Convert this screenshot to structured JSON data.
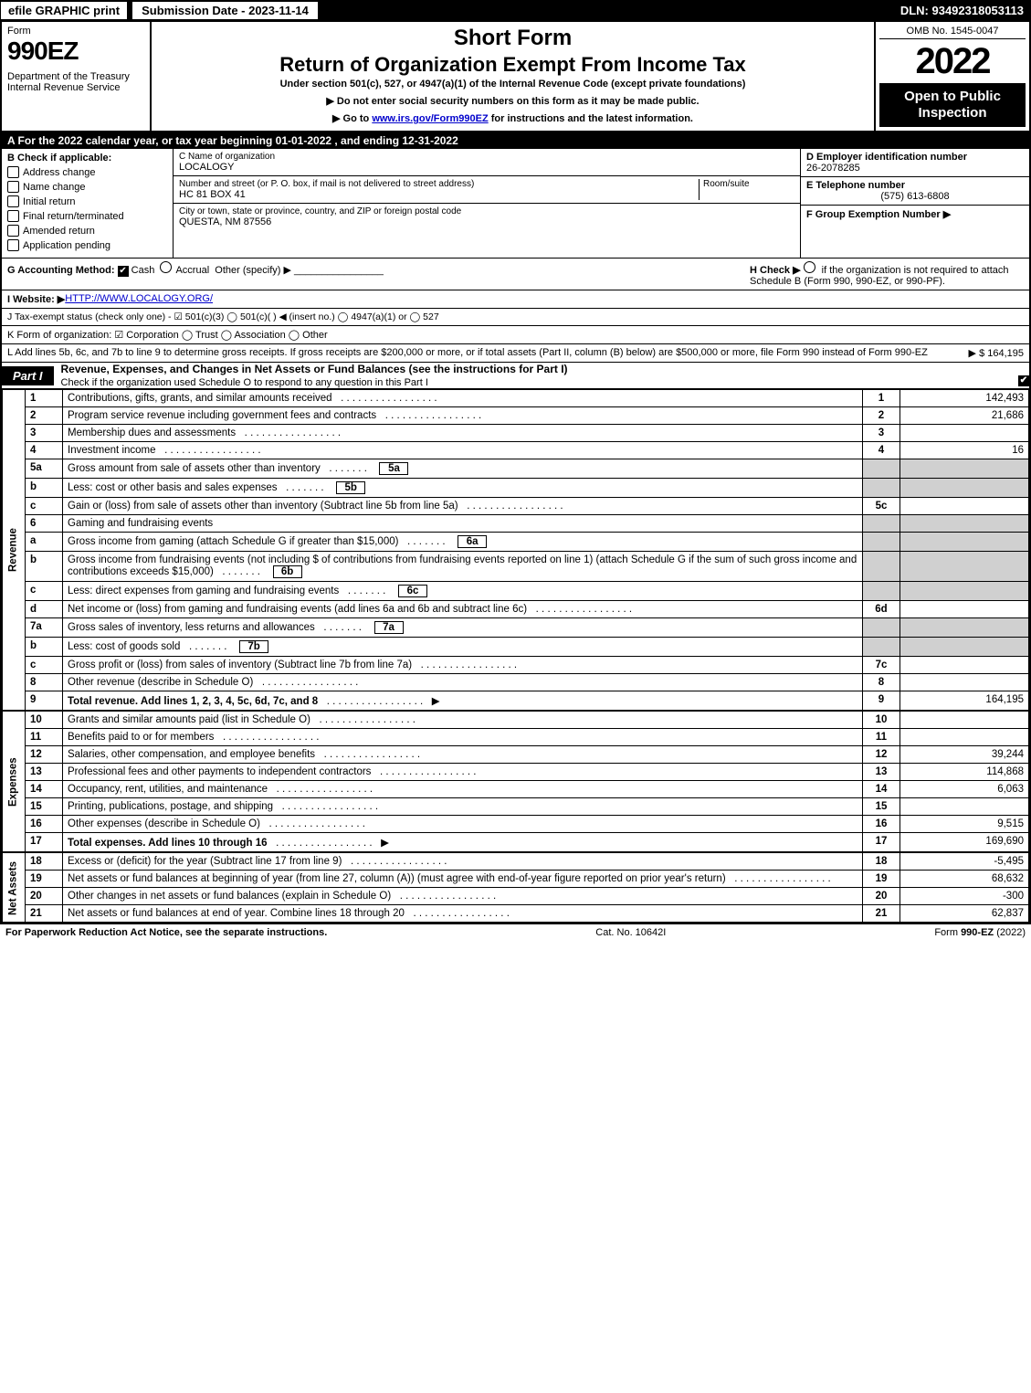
{
  "top": {
    "efile": "efile GRAPHIC print",
    "submission": "Submission Date - 2023-11-14",
    "dln": "DLN: 93492318053113"
  },
  "header": {
    "form_word": "Form",
    "form_num": "990EZ",
    "dept": "Department of the Treasury",
    "irs": "Internal Revenue Service",
    "short_form": "Short Form",
    "title": "Return of Organization Exempt From Income Tax",
    "subtitle": "Under section 501(c), 527, or 4947(a)(1) of the Internal Revenue Code (except private foundations)",
    "notice1": "▶ Do not enter social security numbers on this form as it may be made public.",
    "notice2_pre": "▶ Go to ",
    "notice2_link": "www.irs.gov/Form990EZ",
    "notice2_post": " for instructions and the latest information.",
    "omb": "OMB No. 1545-0047",
    "year": "2022",
    "open": "Open to Public Inspection"
  },
  "a": "A  For the 2022 calendar year, or tax year beginning 01-01-2022 , and ending 12-31-2022",
  "b": {
    "label": "B  Check if applicable:",
    "items": [
      "Address change",
      "Name change",
      "Initial return",
      "Final return/terminated",
      "Amended return",
      "Application pending"
    ]
  },
  "c": {
    "name_label": "C Name of organization",
    "name": "LOCALOGY",
    "street_label": "Number and street (or P. O. box, if mail is not delivered to street address)",
    "room_label": "Room/suite",
    "street": "HC 81 BOX 41",
    "city_label": "City or town, state or province, country, and ZIP or foreign postal code",
    "city": "QUESTA, NM  87556"
  },
  "def": {
    "d_label": "D Employer identification number",
    "d_val": "26-2078285",
    "e_label": "E Telephone number",
    "e_val": "(575) 613-6808",
    "f_label": "F Group Exemption Number  ▶"
  },
  "g": {
    "label": "G Accounting Method:",
    "cash": "Cash",
    "accrual": "Accrual",
    "other": "Other (specify) ▶"
  },
  "h": {
    "label": "H  Check ▶",
    "text": "if the organization is not required to attach Schedule B (Form 990, 990-EZ, or 990-PF)."
  },
  "i": {
    "label": "I Website: ▶",
    "url": "HTTP://WWW.LOCALOGY.ORG/"
  },
  "j": "J Tax-exempt status (check only one) -  ☑ 501(c)(3)  ◯ 501(c)(  ) ◀ (insert no.)  ◯ 4947(a)(1) or  ◯ 527",
  "k": "K Form of organization:  ☑ Corporation  ◯ Trust  ◯ Association  ◯ Other",
  "l": {
    "text": "L Add lines 5b, 6c, and 7b to line 9 to determine gross receipts. If gross receipts are $200,000 or more, or if total assets (Part II, column (B) below) are $500,000 or more, file Form 990 instead of Form 990-EZ",
    "amount": "▶ $ 164,195"
  },
  "part1": {
    "tab": "Part I",
    "title": "Revenue, Expenses, and Changes in Net Assets or Fund Balances (see the instructions for Part I)",
    "check": "Check if the organization used Schedule O to respond to any question in this Part I"
  },
  "sections": {
    "revenue": "Revenue",
    "expenses": "Expenses",
    "netassets": "Net Assets"
  },
  "lines": [
    {
      "n": "1",
      "t": "Contributions, gifts, grants, and similar amounts received",
      "b": "1",
      "a": "142,493"
    },
    {
      "n": "2",
      "t": "Program service revenue including government fees and contracts",
      "b": "2",
      "a": "21,686"
    },
    {
      "n": "3",
      "t": "Membership dues and assessments",
      "b": "3",
      "a": ""
    },
    {
      "n": "4",
      "t": "Investment income",
      "b": "4",
      "a": "16"
    },
    {
      "n": "5a",
      "t": "Gross amount from sale of assets other than inventory",
      "sb": "5a"
    },
    {
      "n": "b",
      "t": "Less: cost or other basis and sales expenses",
      "sb": "5b"
    },
    {
      "n": "c",
      "t": "Gain or (loss) from sale of assets other than inventory (Subtract line 5b from line 5a)",
      "b": "5c",
      "a": ""
    },
    {
      "n": "6",
      "t": "Gaming and fundraising events"
    },
    {
      "n": "a",
      "t": "Gross income from gaming (attach Schedule G if greater than $15,000)",
      "sb": "6a"
    },
    {
      "n": "b",
      "t": "Gross income from fundraising events (not including $                           of contributions from fundraising events reported on line 1) (attach Schedule G if the sum of such gross income and contributions exceeds $15,000)",
      "sb": "6b"
    },
    {
      "n": "c",
      "t": "Less: direct expenses from gaming and fundraising events",
      "sb": "6c"
    },
    {
      "n": "d",
      "t": "Net income or (loss) from gaming and fundraising events (add lines 6a and 6b and subtract line 6c)",
      "b": "6d",
      "a": ""
    },
    {
      "n": "7a",
      "t": "Gross sales of inventory, less returns and allowances",
      "sb": "7a"
    },
    {
      "n": "b",
      "t": "Less: cost of goods sold",
      "sb": "7b"
    },
    {
      "n": "c",
      "t": "Gross profit or (loss) from sales of inventory (Subtract line 7b from line 7a)",
      "b": "7c",
      "a": ""
    },
    {
      "n": "8",
      "t": "Other revenue (describe in Schedule O)",
      "b": "8",
      "a": ""
    },
    {
      "n": "9",
      "t": "Total revenue. Add lines 1, 2, 3, 4, 5c, 6d, 7c, and 8",
      "b": "9",
      "a": "164,195",
      "bold": true,
      "arrow": true
    }
  ],
  "exp_lines": [
    {
      "n": "10",
      "t": "Grants and similar amounts paid (list in Schedule O)",
      "b": "10",
      "a": ""
    },
    {
      "n": "11",
      "t": "Benefits paid to or for members",
      "b": "11",
      "a": ""
    },
    {
      "n": "12",
      "t": "Salaries, other compensation, and employee benefits",
      "b": "12",
      "a": "39,244"
    },
    {
      "n": "13",
      "t": "Professional fees and other payments to independent contractors",
      "b": "13",
      "a": "114,868"
    },
    {
      "n": "14",
      "t": "Occupancy, rent, utilities, and maintenance",
      "b": "14",
      "a": "6,063"
    },
    {
      "n": "15",
      "t": "Printing, publications, postage, and shipping",
      "b": "15",
      "a": ""
    },
    {
      "n": "16",
      "t": "Other expenses (describe in Schedule O)",
      "b": "16",
      "a": "9,515"
    },
    {
      "n": "17",
      "t": "Total expenses. Add lines 10 through 16",
      "b": "17",
      "a": "169,690",
      "bold": true,
      "arrow": true
    }
  ],
  "na_lines": [
    {
      "n": "18",
      "t": "Excess or (deficit) for the year (Subtract line 17 from line 9)",
      "b": "18",
      "a": "-5,495"
    },
    {
      "n": "19",
      "t": "Net assets or fund balances at beginning of year (from line 27, column (A)) (must agree with end-of-year figure reported on prior year's return)",
      "b": "19",
      "a": "68,632"
    },
    {
      "n": "20",
      "t": "Other changes in net assets or fund balances (explain in Schedule O)",
      "b": "20",
      "a": "-300"
    },
    {
      "n": "21",
      "t": "Net assets or fund balances at end of year. Combine lines 18 through 20",
      "b": "21",
      "a": "62,837"
    }
  ],
  "footer": {
    "left": "For Paperwork Reduction Act Notice, see the separate instructions.",
    "mid": "Cat. No. 10642I",
    "right": "Form 990-EZ (2022)"
  }
}
